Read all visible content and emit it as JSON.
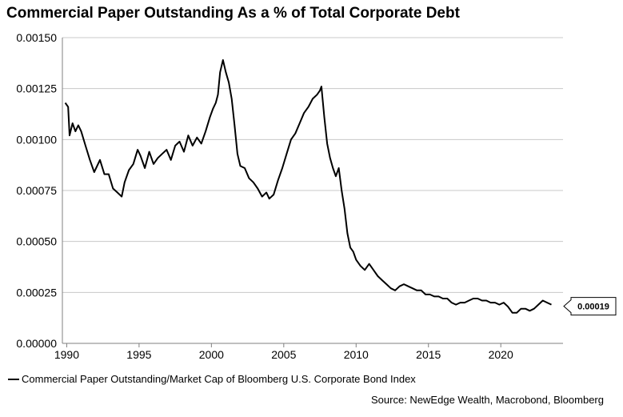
{
  "title": "Commercial Paper Outstanding As a % of Total Corporate Debt",
  "source": "Source: NewEdge Wealth, Macrobond, Bloomberg",
  "legend": {
    "label": "Commercial Paper Outstanding/Market Cap of Bloomberg U.S. Corporate Bond Index"
  },
  "last_value_label": "0.00019",
  "colors": {
    "line": "#000000",
    "grid": "#c8c8c8",
    "axis": "#808080"
  },
  "chart_data": {
    "type": "line",
    "title": "Commercial Paper Outstanding As a % of Total Corporate Debt",
    "xlabel": "",
    "ylabel": "",
    "xlim": [
      1989.7,
      2024.3
    ],
    "ylim": [
      0,
      0.0015
    ],
    "grid": "horizontal",
    "legend_position": "bottom-left",
    "x_ticks": [
      1990,
      1995,
      2000,
      2005,
      2010,
      2015,
      2020
    ],
    "y_ticks": [
      0,
      0.00025,
      0.0005,
      0.00075,
      0.001,
      0.00125,
      0.0015
    ],
    "y_tick_labels": [
      "0.00000",
      "0.00025",
      "0.00050",
      "0.00075",
      "0.00100",
      "0.00125",
      "0.00150"
    ],
    "series": [
      {
        "name": "Commercial Paper Outstanding/Market Cap of Bloomberg U.S. Corporate Bond Index",
        "x": [
          1989.9,
          1990.1,
          1990.2,
          1990.4,
          1990.6,
          1990.8,
          1991.0,
          1991.3,
          1991.6,
          1991.9,
          1992.3,
          1992.6,
          1992.9,
          1993.2,
          1993.5,
          1993.8,
          1994.0,
          1994.3,
          1994.6,
          1994.9,
          1995.1,
          1995.4,
          1995.7,
          1996.0,
          1996.3,
          1996.6,
          1996.9,
          1997.2,
          1997.5,
          1997.8,
          1998.1,
          1998.4,
          1998.7,
          1999.0,
          1999.3,
          1999.6,
          1999.9,
          2000.1,
          2000.3,
          2000.45,
          2000.6,
          2000.8,
          2001.0,
          2001.2,
          2001.4,
          2001.6,
          2001.8,
          2002.0,
          2002.3,
          2002.6,
          2002.9,
          2003.2,
          2003.5,
          2003.8,
          2004.0,
          2004.3,
          2004.6,
          2004.9,
          2005.2,
          2005.5,
          2005.8,
          2006.1,
          2006.4,
          2006.7,
          2007.0,
          2007.3,
          2007.5,
          2007.6,
          2007.8,
          2008.0,
          2008.2,
          2008.4,
          2008.6,
          2008.8,
          2009.0,
          2009.2,
          2009.4,
          2009.6,
          2009.8,
          2010.0,
          2010.3,
          2010.6,
          2010.9,
          2011.2,
          2011.5,
          2011.8,
          2012.1,
          2012.4,
          2012.7,
          2013.0,
          2013.3,
          2013.6,
          2013.9,
          2014.2,
          2014.5,
          2014.8,
          2015.1,
          2015.4,
          2015.7,
          2016.0,
          2016.3,
          2016.6,
          2016.9,
          2017.2,
          2017.5,
          2017.8,
          2018.1,
          2018.4,
          2018.7,
          2019.0,
          2019.3,
          2019.6,
          2019.9,
          2020.2,
          2020.5,
          2020.8,
          2021.1,
          2021.4,
          2021.7,
          2022.0,
          2022.3,
          2022.6,
          2022.9,
          2023.2,
          2023.5
        ],
        "values": [
          0.00118,
          0.00116,
          0.00102,
          0.00108,
          0.00104,
          0.00107,
          0.00104,
          0.00097,
          0.0009,
          0.00084,
          0.0009,
          0.00083,
          0.00083,
          0.00076,
          0.00074,
          0.00072,
          0.00079,
          0.00085,
          0.00088,
          0.00095,
          0.00092,
          0.00086,
          0.00094,
          0.00088,
          0.00091,
          0.00093,
          0.00095,
          0.0009,
          0.00097,
          0.00099,
          0.00094,
          0.00102,
          0.00097,
          0.00101,
          0.00098,
          0.00104,
          0.00111,
          0.00115,
          0.00118,
          0.00122,
          0.00133,
          0.00139,
          0.00133,
          0.00128,
          0.0012,
          0.00107,
          0.00093,
          0.00087,
          0.00086,
          0.00081,
          0.00079,
          0.00076,
          0.00072,
          0.00074,
          0.00071,
          0.00073,
          0.0008,
          0.00086,
          0.00093,
          0.001,
          0.00103,
          0.00108,
          0.00113,
          0.00116,
          0.0012,
          0.00122,
          0.00124,
          0.00126,
          0.00111,
          0.00098,
          0.00091,
          0.00086,
          0.00082,
          0.00086,
          0.00075,
          0.00066,
          0.00054,
          0.00047,
          0.00045,
          0.00041,
          0.00038,
          0.00036,
          0.00039,
          0.00036,
          0.00033,
          0.00031,
          0.00029,
          0.00027,
          0.00026,
          0.00028,
          0.00029,
          0.00028,
          0.00027,
          0.00026,
          0.00026,
          0.00024,
          0.00024,
          0.00023,
          0.00023,
          0.00022,
          0.00022,
          0.0002,
          0.00019,
          0.0002,
          0.0002,
          0.00021,
          0.00022,
          0.00022,
          0.00021,
          0.00021,
          0.0002,
          0.0002,
          0.00019,
          0.0002,
          0.00018,
          0.00015,
          0.00015,
          0.00017,
          0.00017,
          0.00016,
          0.00017,
          0.00019,
          0.00021,
          0.0002,
          0.00019
        ]
      }
    ]
  }
}
